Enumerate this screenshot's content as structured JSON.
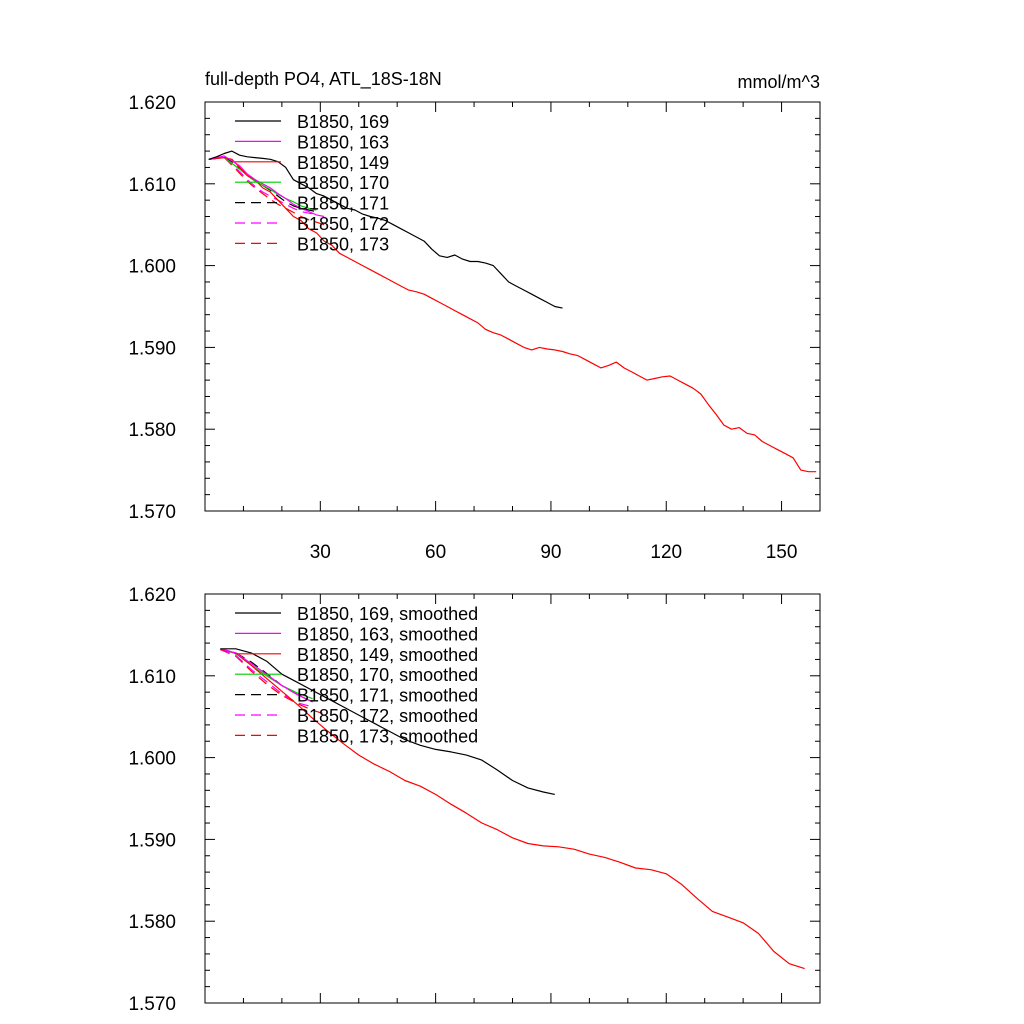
{
  "chart_data": [
    {
      "type": "line",
      "title": "full-depth PO4, ATL_18S-18N",
      "units_label": "mmol/m^3",
      "xlabel": "",
      "ylabel": "",
      "xlim": [
        0,
        160
      ],
      "ylim": [
        1.57,
        1.62
      ],
      "x_ticks": [
        30,
        60,
        90,
        120,
        150
      ],
      "x_tick_labels": [
        "30",
        "60",
        "90",
        "120",
        "150"
      ],
      "y_ticks": [
        1.57,
        1.58,
        1.59,
        1.6,
        1.61,
        1.62
      ],
      "y_tick_labels": [
        "1.570",
        "1.580",
        "1.590",
        "1.600",
        "1.610",
        "1.620"
      ],
      "grid": false,
      "legend_position": "top-left",
      "series": [
        {
          "name": "B1850, 169",
          "color": "#000000",
          "dash": "solid",
          "x": [
            1,
            3,
            5,
            7,
            9,
            11,
            13,
            15,
            17,
            19,
            21,
            23,
            25,
            27,
            29,
            31,
            33,
            35,
            37,
            39,
            41,
            43,
            45,
            47,
            49,
            51,
            53,
            55,
            57,
            59,
            61,
            63,
            65,
            67,
            69,
            71,
            73,
            75,
            77,
            79,
            81,
            83,
            85,
            87,
            89,
            91,
            93
          ],
          "y": [
            1.613,
            1.6133,
            1.6137,
            1.614,
            1.6135,
            1.6133,
            1.6132,
            1.6131,
            1.613,
            1.6127,
            1.612,
            1.6105,
            1.61,
            1.6095,
            1.6088,
            1.6085,
            1.608,
            1.6075,
            1.607,
            1.6068,
            1.6063,
            1.606,
            1.6058,
            1.6055,
            1.605,
            1.6045,
            1.604,
            1.6035,
            1.603,
            1.602,
            1.6012,
            1.601,
            1.6013,
            1.6008,
            1.6005,
            1.6005,
            1.6003,
            1.6,
            1.599,
            1.598,
            1.5975,
            1.597,
            1.5965,
            1.596,
            1.5955,
            1.595,
            1.5948
          ]
        },
        {
          "name": "B1850, 163",
          "color": "#ff00ff",
          "dash": "solid",
          "x": [
            1,
            3,
            5,
            7,
            9,
            11,
            13,
            15,
            17,
            19,
            21,
            23,
            25,
            27,
            29,
            31
          ],
          "y": [
            1.613,
            1.6132,
            1.6134,
            1.6128,
            1.6122,
            1.6112,
            1.6105,
            1.61,
            1.6095,
            1.6088,
            1.6082,
            1.6075,
            1.607,
            1.6066,
            1.6062,
            1.606
          ]
        },
        {
          "name": "B1850, 149",
          "color": "#ff0000",
          "dash": "solid",
          "x": [
            1,
            3,
            5,
            7,
            9,
            11,
            13,
            15,
            17,
            19,
            21,
            23,
            25,
            27,
            29,
            31,
            33,
            35,
            37,
            39,
            41,
            43,
            45,
            47,
            49,
            51,
            53,
            55,
            57,
            59,
            61,
            63,
            65,
            67,
            69,
            71,
            73,
            75,
            77,
            79,
            81,
            83,
            85,
            87,
            89,
            91,
            93,
            95,
            97,
            99,
            101,
            103,
            105,
            107,
            109,
            111,
            113,
            115,
            117,
            119,
            121,
            123,
            125,
            127,
            129,
            131,
            133,
            135,
            137,
            139,
            141,
            143,
            145,
            147,
            149,
            151,
            153,
            155,
            157,
            159
          ],
          "y": [
            1.613,
            1.6131,
            1.6132,
            1.613,
            1.612,
            1.611,
            1.6105,
            1.6095,
            1.609,
            1.608,
            1.607,
            1.606,
            1.6055,
            1.6045,
            1.604,
            1.603,
            1.6025,
            1.6015,
            1.601,
            1.6005,
            1.6,
            1.5995,
            1.599,
            1.5985,
            1.598,
            1.5975,
            1.597,
            1.5968,
            1.5965,
            1.596,
            1.5955,
            1.595,
            1.5945,
            1.594,
            1.5935,
            1.593,
            1.5922,
            1.5918,
            1.5915,
            1.591,
            1.5905,
            1.59,
            1.5897,
            1.59,
            1.5898,
            1.5897,
            1.5895,
            1.5892,
            1.589,
            1.5885,
            1.588,
            1.5875,
            1.5878,
            1.5882,
            1.5875,
            1.587,
            1.5865,
            1.586,
            1.5862,
            1.5864,
            1.5865,
            1.586,
            1.5855,
            1.585,
            1.5843,
            1.583,
            1.5818,
            1.5805,
            1.58,
            1.5802,
            1.5795,
            1.5793,
            1.5785,
            1.578,
            1.5775,
            1.577,
            1.5765,
            1.575,
            1.5748,
            1.5748
          ]
        },
        {
          "name": "B1850, 170",
          "color": "#00cc00",
          "dash": "solid",
          "x": [
            1,
            3,
            5,
            7,
            9,
            11,
            13,
            15,
            17,
            19,
            21,
            23,
            25,
            27,
            29
          ],
          "y": [
            1.613,
            1.6131,
            1.6132,
            1.6125,
            1.6118,
            1.611,
            1.6103,
            1.6098,
            1.6093,
            1.6087,
            1.6082,
            1.6078,
            1.6073,
            1.607,
            1.6068
          ]
        },
        {
          "name": "B1850, 171",
          "color": "#000000",
          "dash": "dashed",
          "x": [
            1,
            3,
            5,
            7,
            9,
            11,
            13,
            15,
            17,
            19,
            21,
            23,
            25,
            27,
            29
          ],
          "y": [
            1.613,
            1.6131,
            1.6133,
            1.6127,
            1.6119,
            1.6112,
            1.6105,
            1.6098,
            1.6092,
            1.6085,
            1.6078,
            1.6073,
            1.607,
            1.6068,
            1.6066
          ]
        },
        {
          "name": "B1850, 172",
          "color": "#ff00ff",
          "dash": "dashed",
          "x": [
            1,
            3,
            5,
            7,
            9,
            11,
            13,
            15,
            17,
            19,
            21,
            23,
            25,
            27,
            29
          ],
          "y": [
            1.613,
            1.6131,
            1.6132,
            1.6124,
            1.6115,
            1.6105,
            1.6097,
            1.609,
            1.6085,
            1.608,
            1.6075,
            1.607,
            1.6066,
            1.6064,
            1.6063
          ]
        },
        {
          "name": "B1850, 173",
          "color": "#ff0000",
          "dash": "dashed",
          "x": [
            1,
            3,
            5,
            7,
            9,
            11,
            13,
            15,
            17,
            19,
            21,
            23,
            25,
            27,
            29,
            31
          ],
          "y": [
            1.613,
            1.6131,
            1.6132,
            1.6123,
            1.6113,
            1.6103,
            1.6095,
            1.6088,
            1.6081,
            1.6075,
            1.607,
            1.6065,
            1.606,
            1.6056,
            1.6053,
            1.605
          ]
        }
      ]
    },
    {
      "type": "line",
      "title": "",
      "xlabel": "",
      "ylabel": "",
      "xlim": [
        0,
        160
      ],
      "ylim": [
        1.57,
        1.62
      ],
      "x_ticks": [
        30,
        60,
        90,
        120,
        150
      ],
      "x_tick_labels": [],
      "y_ticks": [
        1.57,
        1.58,
        1.59,
        1.6,
        1.61,
        1.62
      ],
      "y_tick_labels": [
        "1.570",
        "1.580",
        "1.590",
        "1.600",
        "1.610",
        "1.620"
      ],
      "grid": false,
      "legend_position": "top-left",
      "series": [
        {
          "name": "B1850, 169, smoothed",
          "color": "#000000",
          "dash": "solid",
          "x": [
            4,
            8,
            12,
            16,
            20,
            24,
            28,
            32,
            36,
            40,
            44,
            48,
            52,
            56,
            60,
            64,
            68,
            72,
            76,
            80,
            84,
            88,
            91
          ],
          "y": [
            1.6133,
            1.6133,
            1.6128,
            1.6118,
            1.6102,
            1.6092,
            1.6082,
            1.6072,
            1.6062,
            1.6052,
            1.6042,
            1.6032,
            1.6022,
            1.6015,
            1.601,
            1.6007,
            1.6003,
            1.5997,
            1.5985,
            1.5972,
            1.5963,
            1.5958,
            1.5955
          ]
        },
        {
          "name": "B1850, 163, smoothed",
          "color": "#ff00ff",
          "dash": "solid",
          "x": [
            4,
            8,
            12,
            16,
            20,
            24,
            28
          ],
          "y": [
            1.6133,
            1.6128,
            1.6115,
            1.6102,
            1.6088,
            1.6077,
            1.6068
          ]
        },
        {
          "name": "B1850, 149, smoothed",
          "color": "#ff0000",
          "dash": "solid",
          "x": [
            4,
            8,
            12,
            16,
            20,
            24,
            28,
            32,
            36,
            40,
            44,
            48,
            52,
            56,
            60,
            64,
            68,
            72,
            76,
            80,
            84,
            88,
            92,
            96,
            100,
            104,
            108,
            112,
            116,
            120,
            124,
            128,
            132,
            136,
            140,
            144,
            148,
            152,
            156
          ],
          "y": [
            1.6132,
            1.6128,
            1.6113,
            1.6097,
            1.6081,
            1.6065,
            1.6048,
            1.6032,
            1.6017,
            1.6003,
            1.5992,
            1.5983,
            1.5972,
            1.5965,
            1.5955,
            1.5943,
            1.5932,
            1.592,
            1.5912,
            1.5902,
            1.5895,
            1.5892,
            1.5891,
            1.5888,
            1.5882,
            1.5878,
            1.5872,
            1.5865,
            1.5863,
            1.5858,
            1.5845,
            1.5828,
            1.5812,
            1.5805,
            1.5798,
            1.5785,
            1.5763,
            1.5748,
            1.5742
          ]
        },
        {
          "name": "B1850, 170, smoothed",
          "color": "#00cc00",
          "dash": "solid",
          "x": [
            4,
            8,
            12,
            16,
            20,
            24,
            28
          ],
          "y": [
            1.6133,
            1.6127,
            1.6113,
            1.61,
            1.6088,
            1.6079,
            1.6072
          ]
        },
        {
          "name": "B1850, 171, smoothed",
          "color": "#000000",
          "dash": "dashed",
          "x": [
            4,
            8,
            12,
            16,
            20,
            24,
            28
          ],
          "y": [
            1.6133,
            1.6128,
            1.6117,
            1.6103,
            1.6088,
            1.6077,
            1.6068
          ]
        },
        {
          "name": "B1850, 172, smoothed",
          "color": "#ff00ff",
          "dash": "dashed",
          "x": [
            4,
            8,
            12,
            16,
            20,
            24,
            28
          ],
          "y": [
            1.6132,
            1.6125,
            1.6108,
            1.6093,
            1.6078,
            1.6067,
            1.6062
          ]
        },
        {
          "name": "B1850, 173, smoothed",
          "color": "#ff0000",
          "dash": "dashed",
          "x": [
            4,
            8,
            12,
            16,
            20,
            24,
            28,
            32
          ],
          "y": [
            1.6132,
            1.6124,
            1.6106,
            1.609,
            1.6076,
            1.6066,
            1.6058,
            1.6052
          ]
        }
      ]
    }
  ]
}
